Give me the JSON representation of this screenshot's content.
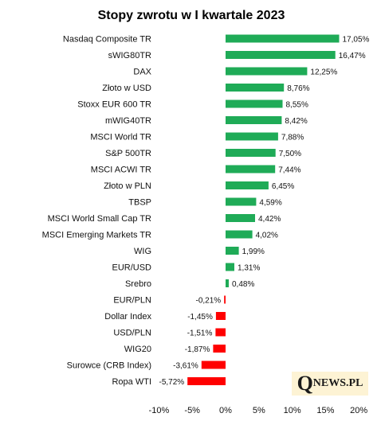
{
  "chart_data": {
    "type": "bar",
    "orientation": "horizontal",
    "title": "Stopy zwrotu w I kwartale 2023",
    "xlabel": "",
    "ylabel": "",
    "xlim": [
      -10,
      20
    ],
    "x_ticks": [
      "-10%",
      "-5%",
      "0%",
      "5%",
      "10%",
      "15%",
      "20%"
    ],
    "x_tick_values": [
      -10,
      -5,
      0,
      5,
      10,
      15,
      20
    ],
    "grid": false,
    "colors": {
      "positive": "#1fab57",
      "negative": "#ff0000"
    },
    "categories": [
      "Nasdaq Composite TR",
      "sWIG80TR",
      "DAX",
      "Złoto w USD",
      "Stoxx EUR 600 TR",
      "mWIG40TR",
      "MSCI World TR",
      "S&P 500TR",
      "MSCI ACWI TR",
      "Złoto w PLN",
      "TBSP",
      "MSCI World Small Cap TR",
      "MSCI Emerging Markets TR",
      "WIG",
      "EUR/USD",
      "Srebro",
      "EUR/PLN",
      "Dollar Index",
      "USD/PLN",
      "WIG20",
      "Surowce (CRB Index)",
      "Ropa WTI"
    ],
    "values": [
      17.05,
      16.47,
      12.25,
      8.76,
      8.55,
      8.42,
      7.88,
      7.5,
      7.44,
      6.45,
      4.59,
      4.42,
      4.02,
      1.99,
      1.31,
      0.48,
      -0.21,
      -1.45,
      -1.51,
      -1.87,
      -3.61,
      -5.72
    ],
    "value_labels": [
      "17,05%",
      "16,47%",
      "12,25%",
      "8,76%",
      "8,55%",
      "8,42%",
      "7,88%",
      "7,50%",
      "7,44%",
      "6,45%",
      "4,59%",
      "4,42%",
      "4,02%",
      "1,99%",
      "1,31%",
      "0,48%",
      "-0,21%",
      "-1,45%",
      "-1,51%",
      "-1,87%",
      "-3,61%",
      "-5,72%"
    ]
  },
  "logo": {
    "letter": "Q",
    "text": "NEWS.PL"
  }
}
